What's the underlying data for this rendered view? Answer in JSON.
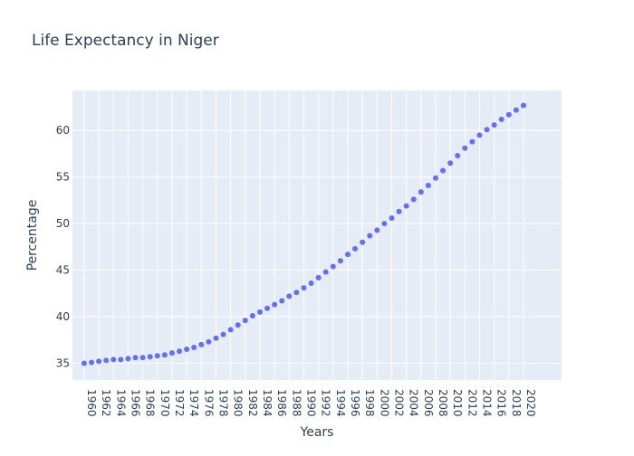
{
  "chart_data": {
    "type": "scatter",
    "title": "Life Expectancy in Niger",
    "xlabel": "Years",
    "ylabel": "Percentage",
    "x": [
      1960,
      1961,
      1962,
      1963,
      1964,
      1965,
      1966,
      1967,
      1968,
      1969,
      1970,
      1971,
      1972,
      1973,
      1974,
      1975,
      1976,
      1977,
      1978,
      1979,
      1980,
      1981,
      1982,
      1983,
      1984,
      1985,
      1986,
      1987,
      1988,
      1989,
      1990,
      1991,
      1992,
      1993,
      1994,
      1995,
      1996,
      1997,
      1998,
      1999,
      2000,
      2001,
      2002,
      2003,
      2004,
      2005,
      2006,
      2007,
      2008,
      2009,
      2010,
      2011,
      2012,
      2013,
      2014,
      2015,
      2016,
      2017,
      2018,
      2019,
      2020
    ],
    "y": [
      35.0,
      35.1,
      35.2,
      35.3,
      35.4,
      35.4,
      35.5,
      35.6,
      35.6,
      35.7,
      35.8,
      35.9,
      36.1,
      36.3,
      36.5,
      36.7,
      37.0,
      37.3,
      37.7,
      38.1,
      38.6,
      39.1,
      39.6,
      40.1,
      40.5,
      40.9,
      41.3,
      41.7,
      42.2,
      42.6,
      43.1,
      43.6,
      44.2,
      44.8,
      45.4,
      46.0,
      46.7,
      47.3,
      48.0,
      48.7,
      49.3,
      50.0,
      50.6,
      51.3,
      51.9,
      52.6,
      53.4,
      54.1,
      54.9,
      55.7,
      56.5,
      57.3,
      58.1,
      58.8,
      59.5,
      60.1,
      60.6,
      61.2,
      61.7,
      62.2,
      62.7
    ],
    "xticks": [
      "1960",
      "1962",
      "1964",
      "1966",
      "1968",
      "1970",
      "1972",
      "1974",
      "1976",
      "1978",
      "1980",
      "1982",
      "1984",
      "1986",
      "1988",
      "1990",
      "1992",
      "1994",
      "1996",
      "1998",
      "2000",
      "2002",
      "2004",
      "2006",
      "2008",
      "2010",
      "2012",
      "2014",
      "2016",
      "2018",
      "2020"
    ],
    "yticks": [
      "35",
      "40",
      "45",
      "50",
      "55",
      "60"
    ],
    "xlim": [
      1958.4,
      2025.2
    ],
    "ylim": [
      33.2,
      64.3
    ],
    "grid": true,
    "colors": {
      "marker": "#636efa",
      "plot_bg": "#e5ecf6",
      "grid": "#ffffff",
      "text": "#2a3f5f"
    }
  }
}
